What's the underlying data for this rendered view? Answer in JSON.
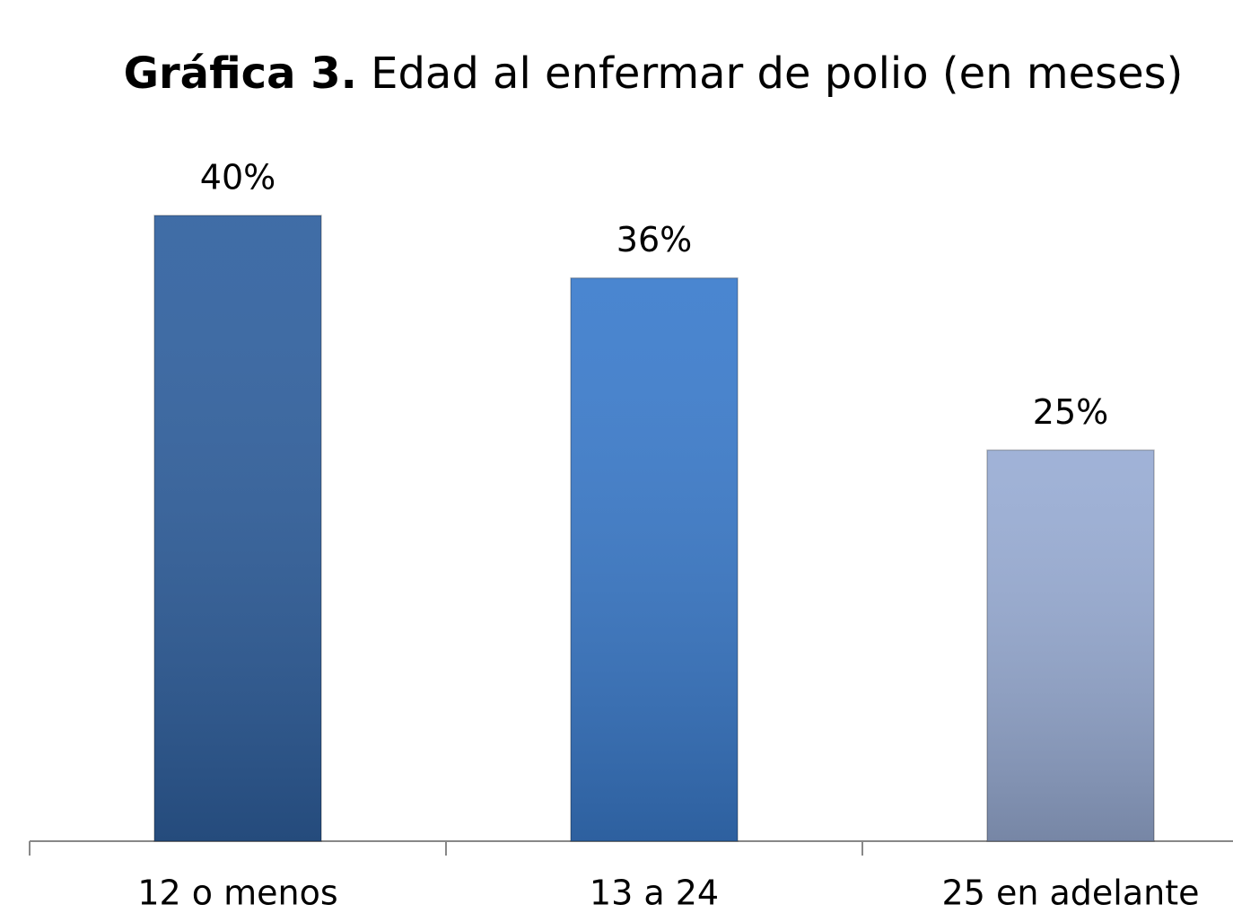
{
  "chart_data": {
    "type": "bar",
    "title_bold": "Gráfica 3.",
    "title": "Edad al enfermar de polio (en meses)",
    "categories": [
      "12 o menos",
      "13 a 24",
      "25 en adelante"
    ],
    "values": [
      40,
      36,
      25
    ],
    "value_labels": [
      "40%",
      "36%",
      "25%"
    ],
    "colors": [
      "#2f609f",
      "#3a7bcc",
      "#98acd4"
    ]
  }
}
